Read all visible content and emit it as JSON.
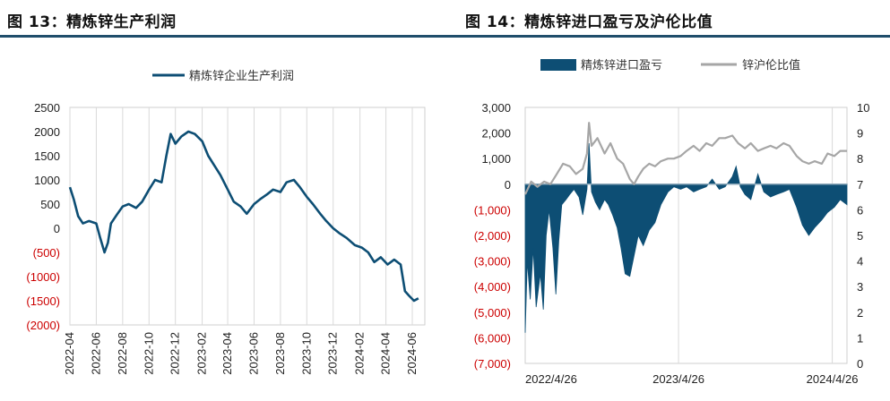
{
  "charts": [
    {
      "figure_title": "图 13：精炼锌生产利润",
      "chart_data": {
        "type": "line",
        "series": [
          {
            "name": "精炼锌企业生产利润",
            "color": "#0d4e74"
          }
        ],
        "x_tick_labels": [
          "2022-04",
          "2022-06",
          "2022-08",
          "2022-10",
          "2022-12",
          "2023-02",
          "2023-04",
          "2023-06",
          "2023-08",
          "2023-10",
          "2023-12",
          "2024-02",
          "2024-04",
          "2024-06"
        ],
        "x_range": [
          "2022-04-01",
          "2024-06-30"
        ],
        "y_ticks": [
          2500,
          2000,
          1500,
          1000,
          500,
          0,
          -500,
          -1000,
          -1500,
          -2000
        ],
        "y_tick_labels": [
          "2500",
          "2000",
          "1500",
          "1000",
          "500",
          "0",
          "(500)",
          "(1000)",
          "(1500)",
          "(2000)"
        ],
        "ylim": [
          -2000,
          2500
        ],
        "grid": "vertical",
        "legend": "top",
        "points": [
          [
            "2022-04-01",
            850
          ],
          [
            "2022-04-10",
            600
          ],
          [
            "2022-04-20",
            250
          ],
          [
            "2022-05-01",
            100
          ],
          [
            "2022-05-15",
            150
          ],
          [
            "2022-06-01",
            100
          ],
          [
            "2022-06-10",
            -200
          ],
          [
            "2022-06-20",
            -500
          ],
          [
            "2022-06-28",
            -300
          ],
          [
            "2022-07-05",
            100
          ],
          [
            "2022-07-20",
            300
          ],
          [
            "2022-08-01",
            450
          ],
          [
            "2022-08-15",
            500
          ],
          [
            "2022-09-01",
            420
          ],
          [
            "2022-09-15",
            550
          ],
          [
            "2022-10-01",
            800
          ],
          [
            "2022-10-15",
            1000
          ],
          [
            "2022-10-30",
            950
          ],
          [
            "2022-11-10",
            1500
          ],
          [
            "2022-11-20",
            1950
          ],
          [
            "2022-12-01",
            1750
          ],
          [
            "2022-12-15",
            1900
          ],
          [
            "2022-12-31",
            2000
          ],
          [
            "2023-01-15",
            1950
          ],
          [
            "2023-02-01",
            1800
          ],
          [
            "2023-02-15",
            1500
          ],
          [
            "2023-03-01",
            1300
          ],
          [
            "2023-03-15",
            1100
          ],
          [
            "2023-04-01",
            800
          ],
          [
            "2023-04-15",
            550
          ],
          [
            "2023-05-01",
            450
          ],
          [
            "2023-05-15",
            300
          ],
          [
            "2023-06-01",
            500
          ],
          [
            "2023-06-15",
            600
          ],
          [
            "2023-07-01",
            700
          ],
          [
            "2023-07-15",
            800
          ],
          [
            "2023-08-01",
            750
          ],
          [
            "2023-08-15",
            950
          ],
          [
            "2023-09-01",
            1000
          ],
          [
            "2023-09-15",
            850
          ],
          [
            "2023-10-01",
            650
          ],
          [
            "2023-10-15",
            500
          ],
          [
            "2023-11-01",
            300
          ],
          [
            "2023-11-15",
            150
          ],
          [
            "2023-12-01",
            0
          ],
          [
            "2023-12-15",
            -100
          ],
          [
            "2024-01-01",
            -200
          ],
          [
            "2024-01-20",
            -350
          ],
          [
            "2024-02-05",
            -400
          ],
          [
            "2024-02-20",
            -500
          ],
          [
            "2024-03-05",
            -700
          ],
          [
            "2024-03-20",
            -600
          ],
          [
            "2024-04-05",
            -750
          ],
          [
            "2024-04-20",
            -650
          ],
          [
            "2024-05-05",
            -750
          ],
          [
            "2024-05-15",
            -1300
          ],
          [
            "2024-05-25",
            -1400
          ],
          [
            "2024-06-05",
            -1500
          ],
          [
            "2024-06-15",
            -1450
          ]
        ]
      }
    },
    {
      "figure_title": "图 14：精炼锌进口盈亏及沪伦比值",
      "chart_data": {
        "type": "area",
        "series": [
          {
            "name": "精炼锌进口盈亏",
            "kind": "area",
            "axis": "left",
            "color": "#0d4e74"
          },
          {
            "name": "锌沪伦比值",
            "kind": "line",
            "axis": "right",
            "color": "#a6a6a6"
          }
        ],
        "x_tick_labels": [
          "2022/4/26",
          "2023/4/26",
          "2024/4/26"
        ],
        "x_range": [
          "2022-04-26",
          "2024-05-31"
        ],
        "y_left_ticks": [
          3000,
          2000,
          1000,
          0,
          -1000,
          -2000,
          -3000,
          -4000,
          -5000,
          -6000,
          -7000
        ],
        "y_left_tick_labels": [
          "3,000",
          "2,000",
          "1,000",
          "0",
          "(1,000)",
          "(2,000)",
          "(3,000)",
          "(4,000)",
          "(5,000)",
          "(6,000)",
          "(7,000)"
        ],
        "y_left_lim": [
          -7000,
          3000
        ],
        "y_right_ticks": [
          10,
          9,
          8,
          7,
          6,
          5,
          4,
          3,
          2,
          1,
          0
        ],
        "y_right_tick_labels": [
          "10",
          "9",
          "8",
          "7",
          "6",
          "5",
          "4",
          "3",
          "2",
          "1",
          "0"
        ],
        "y_right_lim": [
          0,
          10
        ],
        "grid": "vertical",
        "legend": "top",
        "import_profit": [
          [
            "2022-04-26",
            -5800
          ],
          [
            "2022-05-01",
            -3000
          ],
          [
            "2022-05-08",
            -4500
          ],
          [
            "2022-05-15",
            -2500
          ],
          [
            "2022-05-22",
            -4800
          ],
          [
            "2022-06-01",
            -3500
          ],
          [
            "2022-06-08",
            -4900
          ],
          [
            "2022-06-15",
            -2000
          ],
          [
            "2022-06-22",
            -1000
          ],
          [
            "2022-07-01",
            -2500
          ],
          [
            "2022-07-08",
            -4300
          ],
          [
            "2022-07-15",
            -2200
          ],
          [
            "2022-07-22",
            -800
          ],
          [
            "2022-08-01",
            -600
          ],
          [
            "2022-08-10",
            -400
          ],
          [
            "2022-08-20",
            -200
          ],
          [
            "2022-09-01",
            -500
          ],
          [
            "2022-09-10",
            -1200
          ],
          [
            "2022-09-20",
            -200
          ],
          [
            "2022-09-25",
            1600
          ],
          [
            "2022-10-01",
            -300
          ],
          [
            "2022-10-10",
            -700
          ],
          [
            "2022-10-20",
            -1000
          ],
          [
            "2022-11-01",
            -600
          ],
          [
            "2022-11-10",
            -800
          ],
          [
            "2022-11-20",
            -1200
          ],
          [
            "2022-12-01",
            -1700
          ],
          [
            "2022-12-10",
            -2500
          ],
          [
            "2022-12-20",
            -3500
          ],
          [
            "2022-12-31",
            -3600
          ],
          [
            "2023-01-10",
            -2800
          ],
          [
            "2023-01-20",
            -2000
          ],
          [
            "2023-02-01",
            -2400
          ],
          [
            "2023-02-15",
            -1800
          ],
          [
            "2023-03-01",
            -1500
          ],
          [
            "2023-03-15",
            -800
          ],
          [
            "2023-04-01",
            -300
          ],
          [
            "2023-04-15",
            -100
          ],
          [
            "2023-05-01",
            -200
          ],
          [
            "2023-05-15",
            -100
          ],
          [
            "2023-06-01",
            -300
          ],
          [
            "2023-06-15",
            -200
          ],
          [
            "2023-07-01",
            -100
          ],
          [
            "2023-07-15",
            200
          ],
          [
            "2023-08-01",
            -200
          ],
          [
            "2023-08-15",
            -100
          ],
          [
            "2023-09-01",
            300
          ],
          [
            "2023-09-10",
            700
          ],
          [
            "2023-09-20",
            -100
          ],
          [
            "2023-10-01",
            -400
          ],
          [
            "2023-10-15",
            -600
          ],
          [
            "2023-11-01",
            400
          ],
          [
            "2023-11-15",
            -300
          ],
          [
            "2023-12-01",
            -500
          ],
          [
            "2023-12-15",
            -400
          ],
          [
            "2024-01-01",
            -300
          ],
          [
            "2024-01-15",
            -200
          ],
          [
            "2024-02-01",
            -900
          ],
          [
            "2024-02-15",
            -1600
          ],
          [
            "2024-03-01",
            -2000
          ],
          [
            "2024-03-15",
            -1700
          ],
          [
            "2024-04-01",
            -1400
          ],
          [
            "2024-04-15",
            -1100
          ],
          [
            "2024-05-01",
            -900
          ],
          [
            "2024-05-15",
            -600
          ],
          [
            "2024-05-31",
            -800
          ]
        ],
        "shfe_lme_ratio": [
          [
            "2022-04-26",
            6.6
          ],
          [
            "2022-05-10",
            7.1
          ],
          [
            "2022-05-25",
            6.9
          ],
          [
            "2022-06-10",
            7.1
          ],
          [
            "2022-06-25",
            7.0
          ],
          [
            "2022-07-10",
            7.4
          ],
          [
            "2022-07-25",
            7.8
          ],
          [
            "2022-08-10",
            7.7
          ],
          [
            "2022-08-25",
            7.4
          ],
          [
            "2022-09-10",
            7.6
          ],
          [
            "2022-09-20",
            8.2
          ],
          [
            "2022-09-25",
            9.4
          ],
          [
            "2022-10-01",
            8.5
          ],
          [
            "2022-10-15",
            8.8
          ],
          [
            "2022-11-01",
            8.2
          ],
          [
            "2022-11-15",
            8.6
          ],
          [
            "2022-12-01",
            8.0
          ],
          [
            "2022-12-15",
            7.8
          ],
          [
            "2022-12-31",
            7.2
          ],
          [
            "2023-01-10",
            7.0
          ],
          [
            "2023-01-20",
            7.3
          ],
          [
            "2023-02-01",
            7.6
          ],
          [
            "2023-02-15",
            7.8
          ],
          [
            "2023-03-01",
            7.7
          ],
          [
            "2023-03-15",
            7.9
          ],
          [
            "2023-04-01",
            8.0
          ],
          [
            "2023-04-15",
            8.0
          ],
          [
            "2023-05-01",
            8.1
          ],
          [
            "2023-05-15",
            8.3
          ],
          [
            "2023-06-01",
            8.5
          ],
          [
            "2023-06-15",
            8.3
          ],
          [
            "2023-07-01",
            8.6
          ],
          [
            "2023-07-15",
            8.5
          ],
          [
            "2023-08-01",
            8.8
          ],
          [
            "2023-08-15",
            8.8
          ],
          [
            "2023-09-01",
            8.9
          ],
          [
            "2023-09-15",
            8.6
          ],
          [
            "2023-10-01",
            8.4
          ],
          [
            "2023-10-15",
            8.6
          ],
          [
            "2023-11-01",
            8.3
          ],
          [
            "2023-11-15",
            8.4
          ],
          [
            "2023-12-01",
            8.5
          ],
          [
            "2023-12-15",
            8.4
          ],
          [
            "2024-01-01",
            8.6
          ],
          [
            "2024-01-15",
            8.5
          ],
          [
            "2024-02-01",
            8.1
          ],
          [
            "2024-02-15",
            7.9
          ],
          [
            "2024-03-01",
            7.8
          ],
          [
            "2024-03-15",
            7.9
          ],
          [
            "2024-04-01",
            7.8
          ],
          [
            "2024-04-15",
            8.2
          ],
          [
            "2024-05-01",
            8.1
          ],
          [
            "2024-05-15",
            8.3
          ],
          [
            "2024-05-31",
            8.3
          ]
        ]
      }
    }
  ]
}
